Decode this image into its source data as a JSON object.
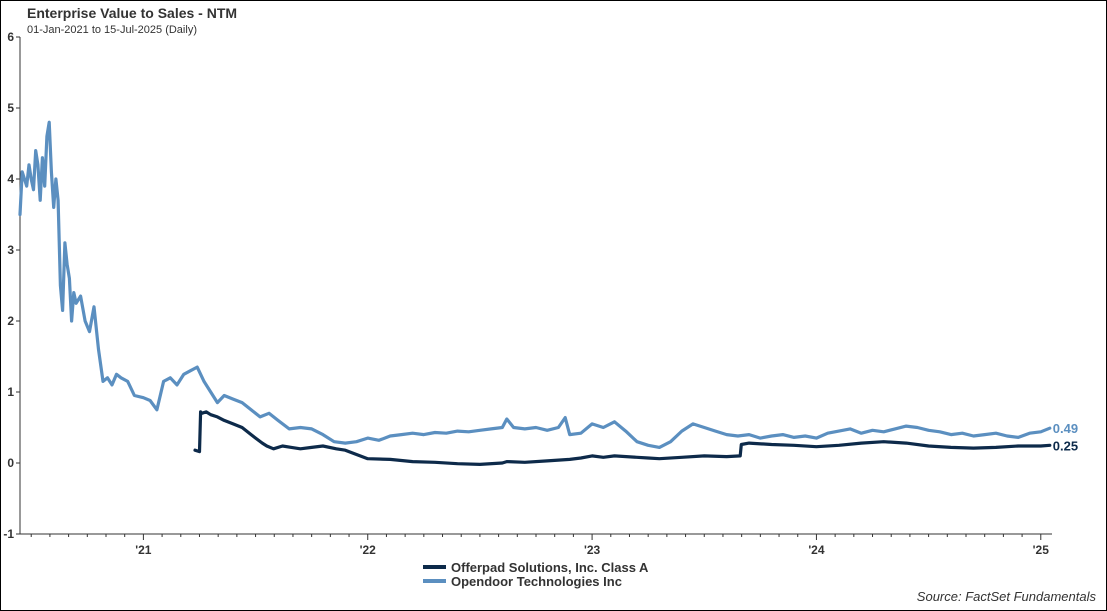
{
  "chart_data": {
    "type": "line",
    "title": "Enterprise Value to Sales - NTM",
    "subtitle": "01-Jan-2021 to 15-Jul-2025 (Daily)",
    "source": "Source:  FactSet Fundamentals",
    "ylim": [
      -1,
      6
    ],
    "yticks": [
      "-1",
      "0",
      "1",
      "2",
      "3",
      "4",
      "5",
      "6"
    ],
    "xlim": [
      2020.45,
      2025.05
    ],
    "xticks": [
      {
        "label": "'21",
        "x": 2021.0
      },
      {
        "label": "'22",
        "x": 2022.0
      },
      {
        "label": "'23",
        "x": 2023.0
      },
      {
        "label": "'24",
        "x": 2024.0
      },
      {
        "label": "'25",
        "x": 2025.0
      }
    ],
    "series": [
      {
        "name": "Offerpad  Solutions, Inc. Class A",
        "color": "#0d2a4a",
        "end_label": "0.25",
        "x": [
          2021.23,
          2021.25,
          2021.255,
          2021.26,
          2021.28,
          2021.3,
          2021.33,
          2021.36,
          2021.4,
          2021.44,
          2021.48,
          2021.5,
          2021.53,
          2021.55,
          2021.58,
          2021.62,
          2021.66,
          2021.7,
          2021.75,
          2021.8,
          2021.86,
          2021.9,
          2021.95,
          2022.0,
          2022.1,
          2022.2,
          2022.3,
          2022.4,
          2022.5,
          2022.6,
          2022.62,
          2022.7,
          2022.8,
          2022.9,
          2022.95,
          2023.0,
          2023.05,
          2023.1,
          2023.2,
          2023.25,
          2023.3,
          2023.4,
          2023.5,
          2023.6,
          2023.66,
          2023.665,
          2023.7,
          2023.8,
          2023.9,
          2024.0,
          2024.1,
          2024.2,
          2024.3,
          2024.4,
          2024.5,
          2024.6,
          2024.7,
          2024.8,
          2024.9,
          2025.0,
          2025.04
        ],
        "y": [
          0.18,
          0.16,
          0.72,
          0.7,
          0.72,
          0.68,
          0.65,
          0.6,
          0.55,
          0.5,
          0.4,
          0.35,
          0.28,
          0.24,
          0.2,
          0.24,
          0.22,
          0.2,
          0.22,
          0.24,
          0.2,
          0.18,
          0.12,
          0.06,
          0.05,
          0.02,
          0.01,
          -0.01,
          -0.02,
          0.0,
          0.02,
          0.01,
          0.03,
          0.05,
          0.07,
          0.1,
          0.08,
          0.1,
          0.08,
          0.07,
          0.06,
          0.08,
          0.1,
          0.09,
          0.1,
          0.26,
          0.28,
          0.26,
          0.25,
          0.23,
          0.25,
          0.28,
          0.3,
          0.28,
          0.24,
          0.22,
          0.21,
          0.22,
          0.24,
          0.24,
          0.25
        ]
      },
      {
        "name": "Opendoor Technologies Inc",
        "color": "#5b8fc0",
        "end_label": "0.49",
        "x": [
          2020.45,
          2020.46,
          2020.48,
          2020.49,
          2020.5,
          2020.51,
          2020.52,
          2020.53,
          2020.54,
          2020.55,
          2020.56,
          2020.57,
          2020.58,
          2020.59,
          2020.6,
          2020.61,
          2020.62,
          2020.63,
          2020.64,
          2020.65,
          2020.66,
          2020.67,
          2020.68,
          2020.69,
          2020.7,
          2020.72,
          2020.74,
          2020.76,
          2020.78,
          2020.8,
          2020.82,
          2020.84,
          2020.86,
          2020.88,
          2020.9,
          2020.93,
          2020.96,
          2021.0,
          2021.03,
          2021.06,
          2021.09,
          2021.12,
          2021.15,
          2021.18,
          2021.21,
          2021.24,
          2021.27,
          2021.3,
          2021.33,
          2021.36,
          2021.4,
          2021.44,
          2021.48,
          2021.52,
          2021.56,
          2021.6,
          2021.65,
          2021.7,
          2021.75,
          2021.8,
          2021.85,
          2021.9,
          2021.95,
          2022.0,
          2022.05,
          2022.1,
          2022.15,
          2022.2,
          2022.25,
          2022.3,
          2022.35,
          2022.4,
          2022.45,
          2022.5,
          2022.55,
          2022.6,
          2022.62,
          2022.65,
          2022.7,
          2022.75,
          2022.8,
          2022.85,
          2022.88,
          2022.9,
          2022.95,
          2023.0,
          2023.05,
          2023.1,
          2023.15,
          2023.2,
          2023.25,
          2023.3,
          2023.35,
          2023.4,
          2023.45,
          2023.5,
          2023.55,
          2023.6,
          2023.65,
          2023.7,
          2023.75,
          2023.8,
          2023.85,
          2023.9,
          2023.95,
          2024.0,
          2024.05,
          2024.1,
          2024.15,
          2024.2,
          2024.25,
          2024.3,
          2024.35,
          2024.4,
          2024.45,
          2024.5,
          2024.55,
          2024.6,
          2024.65,
          2024.7,
          2024.75,
          2024.8,
          2024.85,
          2024.9,
          2024.95,
          2025.0,
          2025.04
        ],
        "y": [
          3.5,
          4.1,
          3.9,
          4.2,
          4.0,
          3.85,
          4.4,
          4.2,
          3.7,
          4.3,
          3.9,
          4.6,
          4.8,
          4.1,
          3.6,
          4.0,
          3.7,
          2.5,
          2.15,
          3.1,
          2.8,
          2.6,
          2.0,
          2.4,
          2.25,
          2.35,
          2.0,
          1.85,
          2.2,
          1.6,
          1.15,
          1.2,
          1.1,
          1.25,
          1.2,
          1.15,
          0.95,
          0.92,
          0.88,
          0.75,
          1.15,
          1.2,
          1.1,
          1.25,
          1.3,
          1.35,
          1.15,
          1.0,
          0.85,
          0.95,
          0.9,
          0.85,
          0.75,
          0.65,
          0.7,
          0.6,
          0.48,
          0.5,
          0.48,
          0.4,
          0.3,
          0.28,
          0.3,
          0.35,
          0.32,
          0.38,
          0.4,
          0.42,
          0.4,
          0.43,
          0.42,
          0.45,
          0.44,
          0.46,
          0.48,
          0.5,
          0.62,
          0.5,
          0.48,
          0.5,
          0.46,
          0.5,
          0.64,
          0.4,
          0.42,
          0.55,
          0.5,
          0.58,
          0.45,
          0.3,
          0.25,
          0.22,
          0.3,
          0.45,
          0.55,
          0.5,
          0.45,
          0.4,
          0.38,
          0.4,
          0.35,
          0.38,
          0.4,
          0.36,
          0.38,
          0.35,
          0.42,
          0.45,
          0.48,
          0.42,
          0.46,
          0.44,
          0.48,
          0.52,
          0.5,
          0.46,
          0.44,
          0.4,
          0.42,
          0.38,
          0.4,
          0.42,
          0.38,
          0.36,
          0.42,
          0.44,
          0.49
        ]
      }
    ],
    "legend_position": "bottom-center",
    "grid": false
  }
}
